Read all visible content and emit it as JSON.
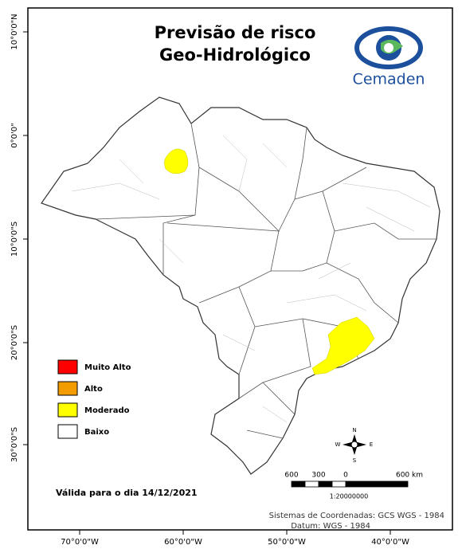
{
  "title": [
    "Previsão de risco",
    "Geo-Hidrológico"
  ],
  "logo": {
    "name": "Cemaden"
  },
  "legend": [
    {
      "label": "Muito Alto",
      "color": "#ff0000"
    },
    {
      "label": "Alto",
      "color": "#f39c00"
    },
    {
      "label": "Moderado",
      "color": "#ffff00"
    },
    {
      "label": "Baixo",
      "color": "#ffffff"
    }
  ],
  "validity": "Válida para o dia 14/12/2021",
  "longitude_labels": [
    "70°0'0\"W",
    "60°0'0\"W",
    "50°0'0\"W",
    "40°0'0\"W"
  ],
  "latitude_labels": [
    "10°0'0\"N",
    "0°0'0\"",
    "10°0'0\"S",
    "20°0'0\"S",
    "30°0'0\"S"
  ],
  "compass": {
    "north": "N",
    "south": "S",
    "east": "E",
    "west": "W"
  },
  "scale_bar": {
    "labels": [
      "600",
      "300",
      "0",
      "600 km"
    ],
    "ratio": "1:20000000"
  },
  "coordinates": {
    "system": "Sistemas de Coordenadas: GCS WGS - 1984",
    "datum": "Datum: WGS - 1984"
  }
}
